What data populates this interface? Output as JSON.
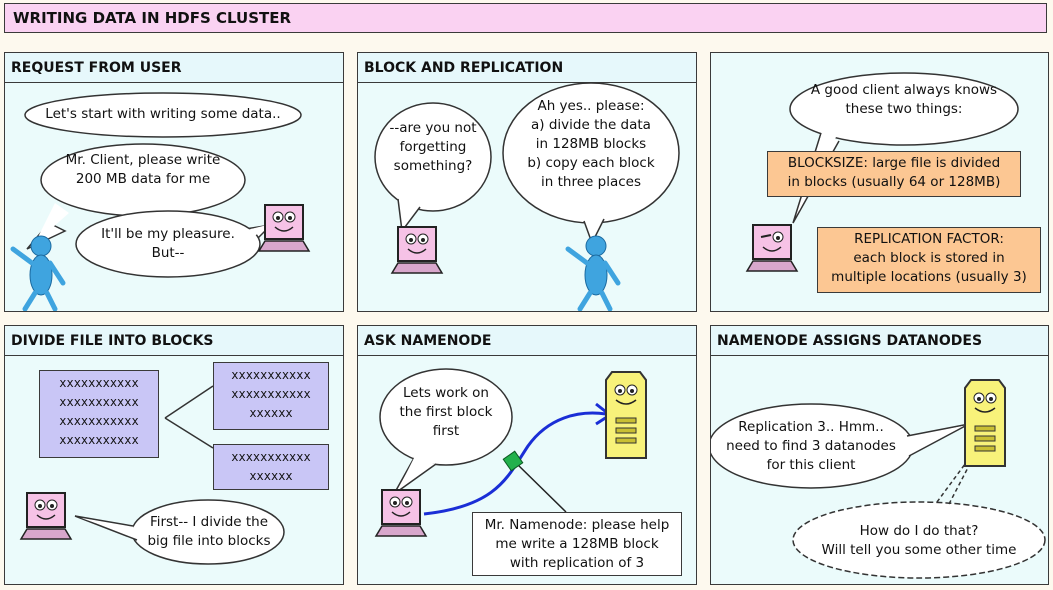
{
  "title": "WRITING DATA IN HDFS CLUSTER",
  "panels": [
    {
      "heading": "REQUEST FROM USER",
      "bubbles": [
        "Let's start with writing some data..",
        "Mr. Client, please write\n200 MB data for me",
        "It'll be my pleasure.\nBut--"
      ]
    },
    {
      "heading": "BLOCK AND REPLICATION",
      "bubbles": [
        "--are you not\nforgetting\nsomething?",
        "Ah yes.. please:\na) divide the data\nin 128MB blocks\nb) copy each block\nin three places"
      ]
    },
    {
      "heading": "",
      "bubbles": [
        "A good client always knows\nthese two things:"
      ],
      "notes": [
        "BLOCKSIZE: large file is divided\nin blocks (usually 64 or 128MB)",
        "REPLICATION FACTOR:\neach block is stored in\nmultiple locations (usually 3)"
      ]
    },
    {
      "heading": "DIVIDE FILE INTO BLOCKS",
      "blocks": [
        "xxxxxxxxxxx\nxxxxxxxxxxx\nxxxxxxxxxxx\nxxxxxxxxxxx",
        "xxxxxxxxxxx\nxxxxxxxxxxx\nxxxxxx",
        "xxxxxxxxxxx\nxxxxxx"
      ],
      "bubbles": [
        "First-- I divide the\nbig file into blocks"
      ]
    },
    {
      "heading": "ASK NAMENODE",
      "bubbles": [
        "Lets work on\nthe first block\nfirst"
      ],
      "message": "Mr. Namenode: please help\nme write a 128MB block\nwith replication of 3"
    },
    {
      "heading": "NAMENODE ASSIGNS DATANODES",
      "bubbles": [
        "Replication 3.. Hmm..\nneed to find 3 datanodes\nfor this client",
        "How do I do that?\nWill tell you some other time"
      ]
    }
  ],
  "colors": {
    "title_bg": "#fad2f2",
    "panel_bg": "#ebfbfb",
    "note_bg": "#fcc793",
    "block_bg": "#c9c6f6",
    "laptop_screen": "#f6c2e6",
    "figure_blue": "#3fa4df",
    "server_yellow": "#f8f27a",
    "arrow_blue": "#1a2ed6",
    "packet_green": "#22b14c"
  },
  "icons": [
    "laptop-client-icon",
    "stick-figure-user-icon",
    "namenode-server-icon",
    "data-packet-icon"
  ]
}
